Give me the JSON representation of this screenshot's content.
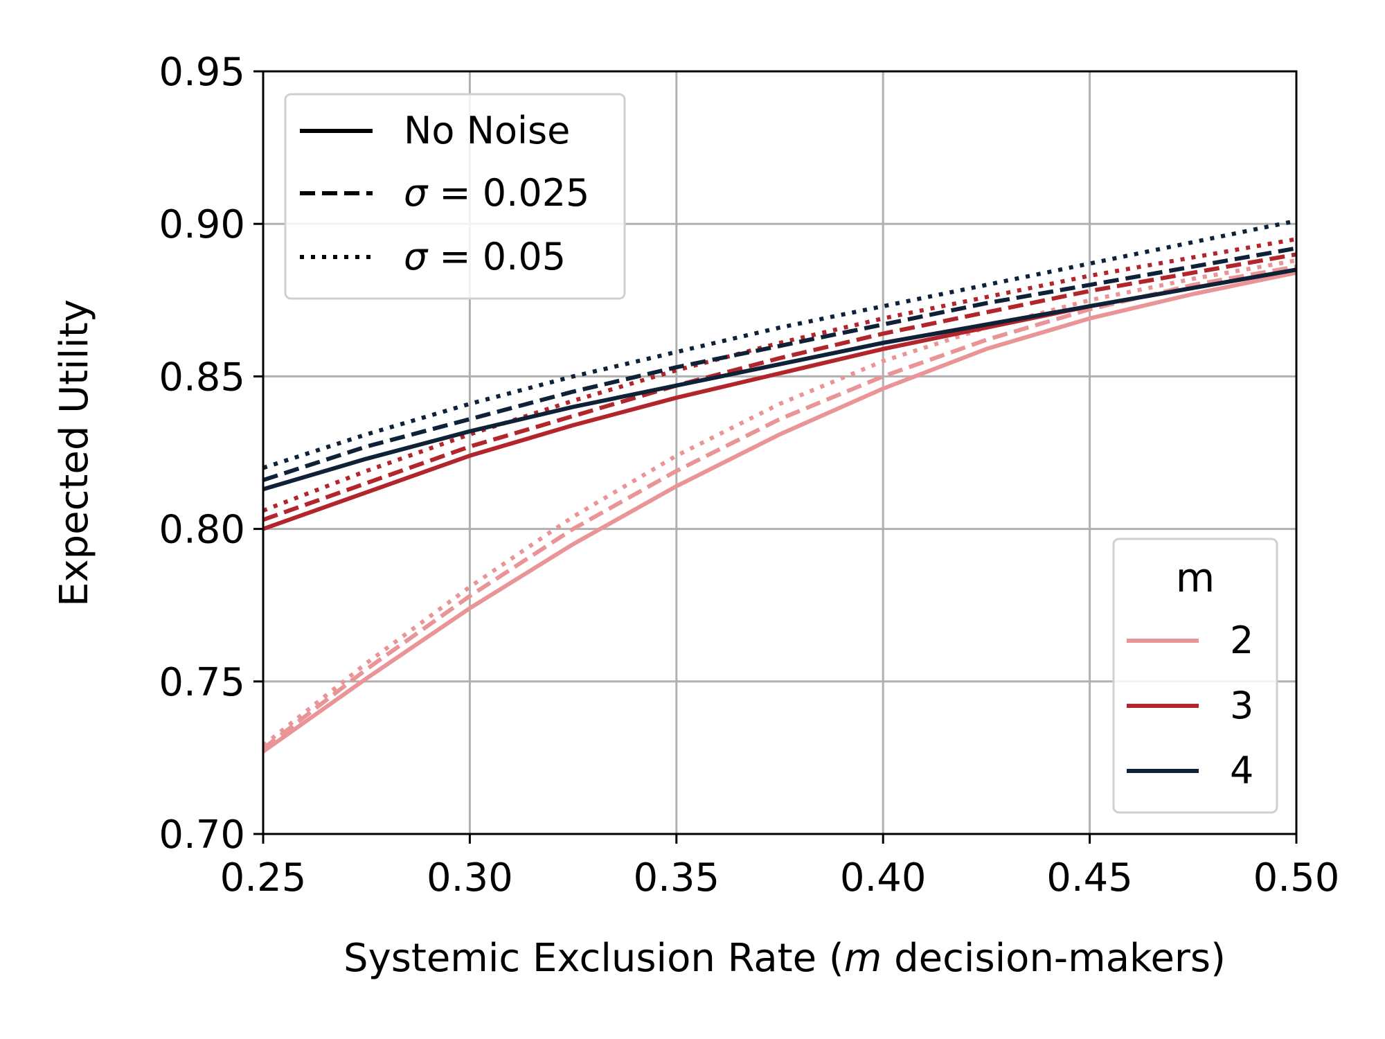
{
  "chart_data": {
    "type": "line",
    "xlabel_prefix": "Systemic Exclusion Rate (",
    "xlabel_var": "m",
    "xlabel_suffix": " decision-makers)",
    "ylabel": "Expected Utility",
    "xlim": [
      0.25,
      0.5
    ],
    "ylim": [
      0.7,
      0.95
    ],
    "xticks": [
      "0.25",
      "0.30",
      "0.35",
      "0.40",
      "0.45",
      "0.50"
    ],
    "yticks": [
      "0.70",
      "0.75",
      "0.80",
      "0.85",
      "0.90",
      "0.95"
    ],
    "grid": true,
    "x": [
      0.25,
      0.275,
      0.3,
      0.325,
      0.35,
      0.375,
      0.4,
      0.425,
      0.45,
      0.475,
      0.5
    ],
    "line_styles": {
      "none": "solid",
      "s025": "dashed",
      "s05": "dotted"
    },
    "colors": {
      "m2": "#e99497",
      "m3": "#b2252b",
      "m4": "#0f2137"
    },
    "noise_legend": {
      "position": "top-left",
      "entries": [
        {
          "label": "No Noise",
          "style": "solid"
        },
        {
          "label": "σ = 0.025",
          "sigma": "σ",
          "rest": " = 0.025",
          "style": "dashed"
        },
        {
          "label": "σ = 0.05",
          "sigma": "σ",
          "rest": " = 0.05",
          "style": "dotted"
        }
      ]
    },
    "m_legend": {
      "position": "bottom-right",
      "title": "m",
      "entries": [
        {
          "label": "2",
          "color": "#e99497"
        },
        {
          "label": "3",
          "color": "#b2252b"
        },
        {
          "label": "4",
          "color": "#0f2137"
        }
      ]
    },
    "series": [
      {
        "m": "2",
        "noise": "none",
        "values": [
          0.727,
          0.751,
          0.774,
          0.795,
          0.814,
          0.831,
          0.846,
          0.859,
          0.869,
          0.877,
          0.884
        ]
      },
      {
        "m": "2",
        "noise": "s025",
        "values": [
          0.728,
          0.754,
          0.778,
          0.8,
          0.819,
          0.836,
          0.85,
          0.862,
          0.872,
          0.88,
          0.886
        ]
      },
      {
        "m": "2",
        "noise": "s05",
        "values": [
          0.729,
          0.756,
          0.781,
          0.804,
          0.824,
          0.841,
          0.855,
          0.866,
          0.875,
          0.882,
          0.888
        ]
      },
      {
        "m": "3",
        "noise": "none",
        "values": [
          0.8,
          0.812,
          0.824,
          0.834,
          0.843,
          0.851,
          0.859,
          0.866,
          0.873,
          0.879,
          0.885
        ]
      },
      {
        "m": "3",
        "noise": "s025",
        "values": [
          0.803,
          0.815,
          0.827,
          0.837,
          0.847,
          0.856,
          0.864,
          0.871,
          0.878,
          0.884,
          0.89
        ]
      },
      {
        "m": "3",
        "noise": "s05",
        "values": [
          0.806,
          0.819,
          0.831,
          0.842,
          0.852,
          0.861,
          0.869,
          0.876,
          0.883,
          0.889,
          0.895
        ]
      },
      {
        "m": "4",
        "noise": "none",
        "values": [
          0.813,
          0.823,
          0.832,
          0.84,
          0.847,
          0.854,
          0.861,
          0.867,
          0.873,
          0.879,
          0.885
        ]
      },
      {
        "m": "4",
        "noise": "s025",
        "values": [
          0.816,
          0.827,
          0.836,
          0.845,
          0.853,
          0.86,
          0.867,
          0.874,
          0.88,
          0.886,
          0.892
        ]
      },
      {
        "m": "4",
        "noise": "s05",
        "values": [
          0.82,
          0.831,
          0.841,
          0.85,
          0.858,
          0.866,
          0.873,
          0.88,
          0.887,
          0.894,
          0.901
        ]
      }
    ]
  }
}
